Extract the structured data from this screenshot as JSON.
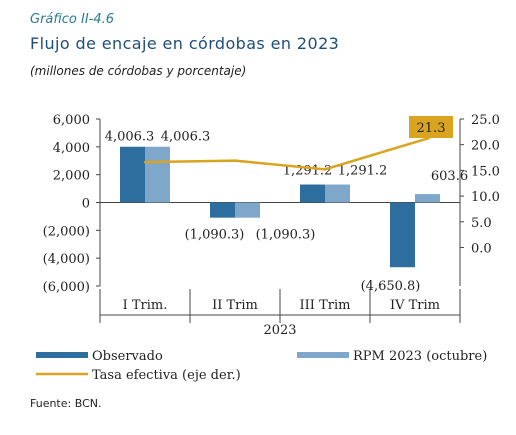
{
  "figure_label": "Gráfico II-4.6",
  "title": "Flujo de encaje en córdobas en 2023",
  "subtitle": "(millones de córdobas y porcentaje)",
  "source": "Fuente: BCN.",
  "colors": {
    "observado": "#2e6e9e",
    "rpm": "#7ea7c9",
    "tasa": "#d9a520",
    "title": "#1f4e79",
    "figure_label": "#2a7a8c"
  },
  "chart_data": {
    "type": "bar",
    "categories": [
      "I Trim.",
      "II Trim",
      "III Trim",
      "IV Trim"
    ],
    "x_group_label": "2023",
    "series": [
      {
        "name": "Observado",
        "values": [
          4006.3,
          -1090.3,
          1291.2,
          -4650.8
        ],
        "labels": [
          "4,006.3",
          "(1,090.3)",
          "1,291.2",
          "(4,650.8)"
        ]
      },
      {
        "name": "RPM 2023 (octubre)",
        "values": [
          4006.3,
          -1090.3,
          1291.2,
          603.6
        ],
        "labels": [
          "4,006.3",
          "(1,090.3)",
          "1,291.2",
          "603.6"
        ]
      },
      {
        "name": "Tasa efectiva (eje der.)",
        "axis": "right",
        "type": "line",
        "values": [
          16.6,
          16.9,
          15.2,
          21.3
        ],
        "labels": [
          "",
          "",
          "",
          "21.3"
        ]
      }
    ],
    "y_left": {
      "lim": [
        -6000,
        6000
      ],
      "ticks": [
        6000,
        4000,
        2000,
        0,
        -2000,
        -4000,
        -6000
      ],
      "tick_labels": [
        "6,000",
        "4,000",
        "2,000",
        "0",
        "(2,000)",
        "(4,000)",
        "(6,000)"
      ]
    },
    "y_right": {
      "lim": [
        -7.5,
        25
      ],
      "ticks": [
        25,
        20,
        15,
        10,
        5,
        0
      ],
      "tick_labels": [
        "25.0",
        "20.0",
        "15.0",
        "10.0",
        "5.0",
        "0.0"
      ]
    },
    "legend": {
      "placement": "bottom",
      "entries": [
        "Observado",
        "RPM 2023 (octubre)",
        "Tasa efectiva (eje der.)"
      ]
    },
    "grid": false
  }
}
